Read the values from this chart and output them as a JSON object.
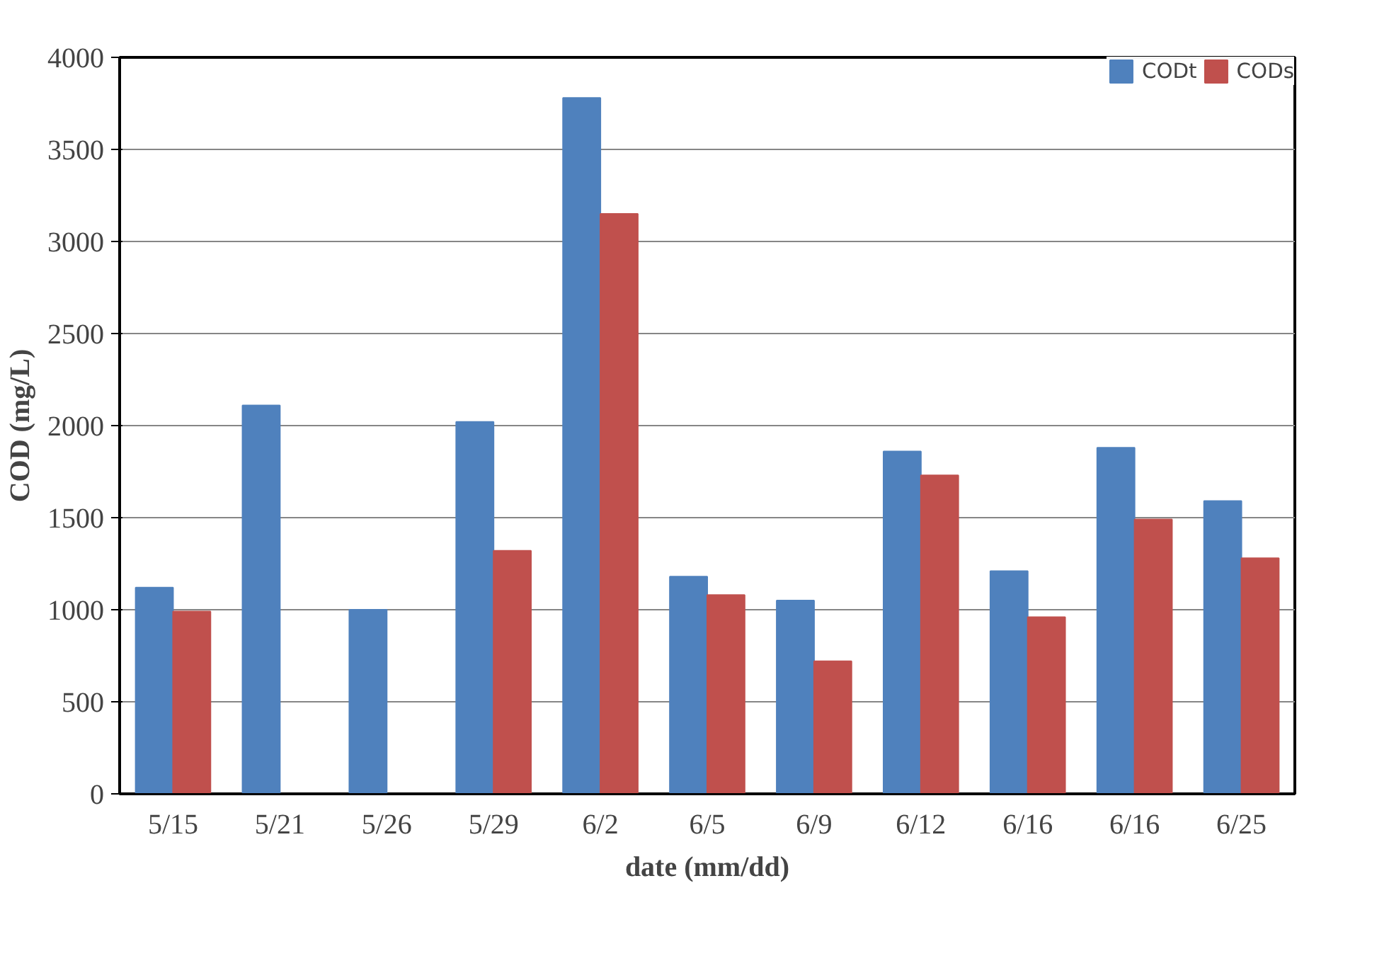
{
  "chart_data": {
    "type": "bar",
    "xlabel": "date (mm/dd)",
    "ylabel": "COD (mg/L)",
    "categories": [
      "5/15",
      "5/21",
      "5/26",
      "5/29",
      "6/2",
      "6/5",
      "6/9",
      "6/12",
      "6/16",
      "6/16",
      "6/25"
    ],
    "series": [
      {
        "name": "CODt",
        "color": "#4f81bd",
        "values": [
          1120,
          2110,
          1000,
          2020,
          3780,
          1180,
          1050,
          1860,
          1210,
          1880,
          1590
        ]
      },
      {
        "name": "CODs",
        "color": "#c0504d",
        "values": [
          990,
          null,
          null,
          1320,
          3150,
          1080,
          720,
          1730,
          960,
          1490,
          1280
        ]
      }
    ],
    "ylim": [
      0,
      4000
    ],
    "yticks": [
      0,
      500,
      1000,
      1500,
      2000,
      2500,
      3000,
      3500,
      4000
    ],
    "grid": "y",
    "legend": "top right"
  }
}
